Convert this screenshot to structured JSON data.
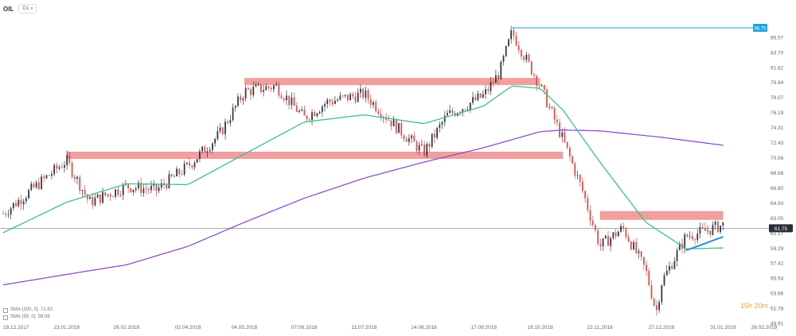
{
  "header": {
    "symbol": "OIL",
    "interval_pill": "D1"
  },
  "countdown": "15h 20m",
  "colors": {
    "up": "#2f3a46",
    "down": "#d8504a",
    "sma_short": "#3cbf93",
    "sma_long": "#8a4fd0",
    "resistance_zone": "#ef8d8d",
    "peak_line": "#1aa3e0",
    "trendline": "#2b8fd6",
    "price_label_bg": "#2a2f36"
  },
  "legend": [
    {
      "name": "SMA (200, 0)",
      "value": "71.63"
    },
    {
      "name": "SMA (50, 0)",
      "value": "59.06"
    }
  ],
  "chart_data": {
    "type": "candlestick",
    "title": "",
    "xlabel": "",
    "ylabel": "",
    "ylim": [
      49.91,
      87.44
    ],
    "x_ticks": [
      "18.12.2017",
      "23.01.2018",
      "26.02.2018",
      "02.04.2018",
      "04.05.2018",
      "07.06.2018",
      "11.07.2018",
      "14.08.2018",
      "17.09.2018",
      "19.10.2018",
      "22.11.2018",
      "27.12.2018",
      "31.01.2019",
      "26.02.2019"
    ],
    "y_ticks": [
      "85.57",
      "83.70",
      "81.82",
      "79.94",
      "78.07",
      "76.19",
      "74.31",
      "72.43",
      "70.56",
      "68.68",
      "66.80",
      "64.93",
      "63.05",
      "61.17",
      "59.29",
      "57.42",
      "55.54",
      "53.66",
      "51.78",
      "49.91"
    ],
    "current_price": "61.75",
    "peak_label": "86.75",
    "grid": false,
    "close_series": {
      "dates": [
        "18.12.2017",
        "23.01.2018",
        "05.02.2018",
        "26.02.2018",
        "15.03.2018",
        "02.04.2018",
        "20.04.2018",
        "04.05.2018",
        "22.05.2018",
        "07.06.2018",
        "20.06.2018",
        "11.07.2018",
        "01.08.2018",
        "14.08.2018",
        "27.08.2018",
        "17.09.2018",
        "26.09.2018",
        "03.10.2018",
        "19.10.2018",
        "01.11.2018",
        "12.11.2018",
        "22.11.2018",
        "05.12.2018",
        "18.12.2018",
        "24.12.2018",
        "27.12.2018",
        "10.01.2019",
        "18.01.2019",
        "31.01.2019"
      ],
      "values": [
        63.6,
        70.2,
        65.0,
        67.0,
        66.5,
        69.5,
        73.5,
        78.8,
        79.5,
        75.5,
        77.5,
        78.5,
        73.8,
        71.2,
        75.8,
        78.3,
        81.2,
        86.2,
        79.5,
        72.8,
        66.5,
        59.5,
        61.8,
        56.5,
        51.3,
        55.0,
        60.8,
        61.2,
        62.2
      ]
    },
    "sma_50": {
      "dates": [
        "18.12.2017",
        "23.01.2018",
        "26.02.2018",
        "02.04.2018",
        "04.05.2018",
        "07.06.2018",
        "11.07.2018",
        "14.08.2018",
        "17.09.2018",
        "03.10.2018",
        "19.10.2018",
        "01.11.2018",
        "22.11.2018",
        "18.12.2018",
        "10.01.2019",
        "31.01.2019"
      ],
      "values": [
        61.2,
        65.0,
        67.3,
        67.2,
        71.0,
        75.0,
        75.9,
        74.8,
        77.0,
        79.5,
        79.2,
        76.5,
        70.0,
        62.5,
        59.2,
        59.3
      ]
    },
    "sma_200": {
      "dates": [
        "18.12.2017",
        "23.01.2018",
        "26.02.2018",
        "02.04.2018",
        "04.05.2018",
        "07.06.2018",
        "11.07.2018",
        "14.08.2018",
        "17.09.2018",
        "19.10.2018",
        "01.11.2018",
        "22.11.2018",
        "27.12.2018",
        "31.01.2019"
      ],
      "values": [
        54.7,
        56.0,
        57.2,
        59.5,
        62.5,
        65.5,
        68.0,
        70.0,
        71.8,
        73.8,
        74.0,
        73.9,
        73.1,
        72.1
      ]
    },
    "resistance_zones": [
      {
        "from": "04.05.2018",
        "to": "19.10.2018",
        "low": 79.6,
        "high": 80.5
      },
      {
        "from": "23.01.2018",
        "to": "01.11.2018",
        "low": 70.4,
        "high": 71.3
      },
      {
        "from": "22.11.2018",
        "to": "31.01.2019",
        "low": 62.8,
        "high": 63.9
      }
    ],
    "peak_line": {
      "from": "03.10.2018",
      "value": 86.75
    },
    "trendline": {
      "from": [
        "10.01.2019",
        59.0
      ],
      "to": [
        "31.01.2019",
        60.7
      ]
    }
  }
}
